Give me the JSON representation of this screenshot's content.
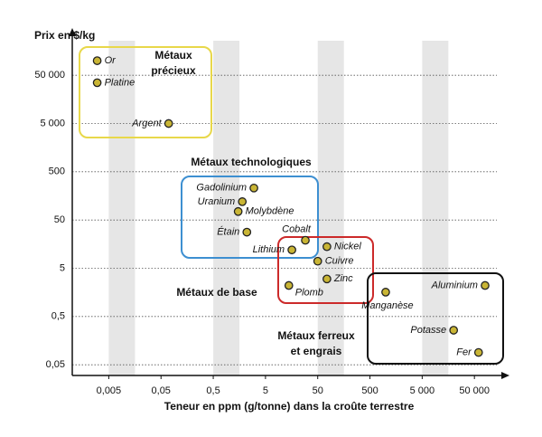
{
  "chart_data": {
    "type": "scatter",
    "ylabel": "Prix en $/kg",
    "xlabel": "Teneur en ppm (g/tonne) dans la croûte terrestre",
    "log_x": true,
    "log_y": true,
    "grid": true,
    "xlim": [
      0.001,
      200000
    ],
    "ylim": [
      0.03,
      400000
    ],
    "xticks": [
      {
        "value": 0.005,
        "label": "0,005"
      },
      {
        "value": 0.05,
        "label": "0,05"
      },
      {
        "value": 0.5,
        "label": "0,5"
      },
      5,
      50,
      500,
      {
        "value": 5000,
        "label": "5 000"
      },
      {
        "value": 50000,
        "label": "50 000"
      }
    ],
    "yticks": [
      {
        "value": 0.05,
        "label": "0,05"
      },
      {
        "value": 0.5,
        "label": "0,5"
      },
      5,
      50,
      500,
      {
        "value": 5000,
        "label": "5 000"
      },
      {
        "value": 50000,
        "label": "50 000"
      }
    ],
    "color": "#c9b535",
    "labels": [
      "Or",
      "Platine",
      "Argent",
      "Gadolinium",
      "Uranium",
      "Molybdène",
      "Étain",
      "Cobalt",
      "Lithium",
      "Nickel",
      "Cuivre",
      "Zinc",
      "Plomb",
      "Aluminium",
      "Manganèse",
      "Potasse",
      "Fer"
    ],
    "x": [
      0.003,
      0.003,
      0.07,
      3,
      1.8,
      1.5,
      2.2,
      29,
      16,
      75,
      50,
      75,
      14,
      80000,
      1000,
      20000,
      60000
    ],
    "y": [
      100000,
      35000,
      5000,
      230,
      120,
      75,
      28,
      19,
      12,
      14,
      7,
      3,
      2.2,
      2.2,
      1.6,
      0.26,
      0.09
    ],
    "annotations": [
      {
        "lines": [
          "Métaux",
          "précieux"
        ],
        "color": "#e8d84a"
      },
      {
        "lines": [
          "Métaux technologiques"
        ],
        "color": "#3d8fd1"
      },
      {
        "lines": [
          "Métaux de base"
        ],
        "color": "#cc2a2a"
      },
      {
        "lines": [
          "Métaux ferreux",
          "et engrais"
        ],
        "color": "#111111"
      }
    ]
  }
}
